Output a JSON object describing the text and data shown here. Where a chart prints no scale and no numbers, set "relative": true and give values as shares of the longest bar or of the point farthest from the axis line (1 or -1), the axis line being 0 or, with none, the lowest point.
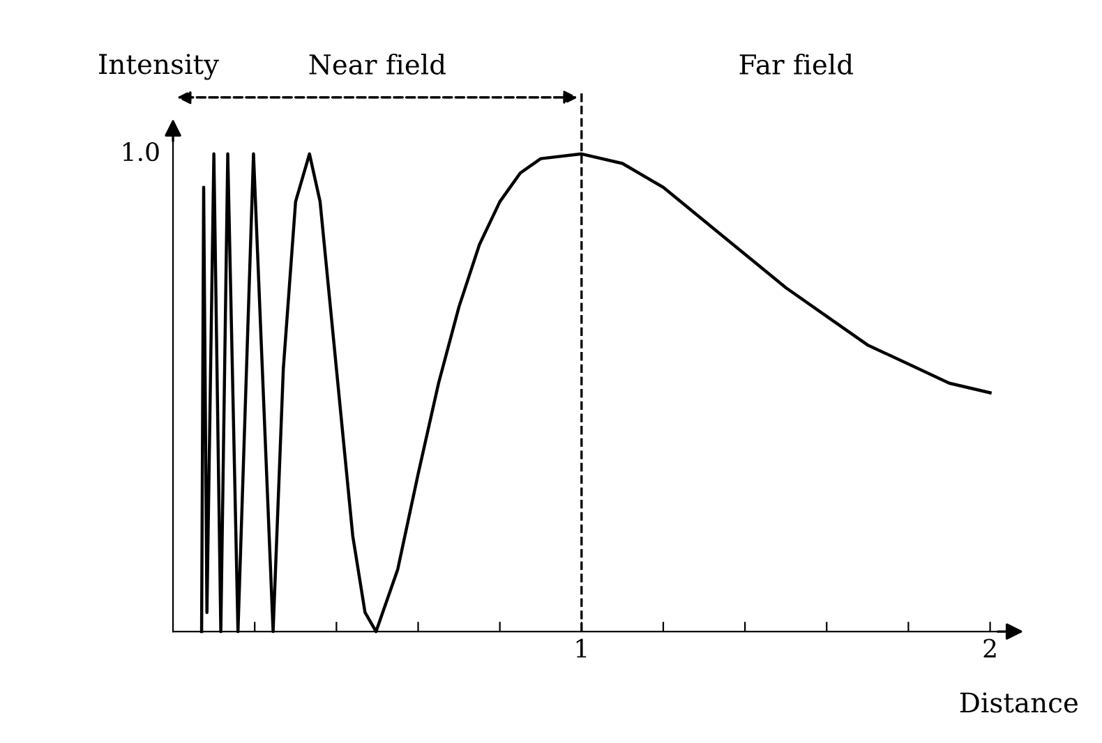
{
  "chart_data": {
    "type": "line",
    "xlabel": "Distance",
    "ylabel": "Intensity",
    "series": [
      {
        "color": "#000000",
        "x": [
          0.07,
          0.075,
          0.083,
          0.1,
          0.117,
          0.134,
          0.159,
          0.197,
          0.245,
          0.27,
          0.3,
          0.334,
          0.36,
          0.4,
          0.44,
          0.47,
          0.497,
          0.55,
          0.6,
          0.65,
          0.7,
          0.75,
          0.8,
          0.85,
          0.9,
          1.0,
          1.1,
          1.2,
          1.3,
          1.4,
          1.5,
          1.6,
          1.7,
          1.8,
          1.9,
          2.0
        ],
        "values": [
          0.0,
          0.93,
          0.04,
          1.0,
          0.0,
          1.0,
          0.0,
          1.0,
          0.0,
          0.55,
          0.9,
          1.0,
          0.9,
          0.55,
          0.2,
          0.04,
          0.0,
          0.13,
          0.33,
          0.52,
          0.68,
          0.81,
          0.9,
          0.96,
          0.99,
          1.0,
          0.98,
          0.93,
          0.86,
          0.79,
          0.72,
          0.66,
          0.6,
          0.56,
          0.52,
          0.5
        ]
      }
    ],
    "xlim": [
      0,
      2.05
    ],
    "relative": true,
    "xticks": [
      {
        "value": 0.2,
        "label": null
      },
      {
        "value": 0.4,
        "label": null
      },
      {
        "value": 0.6,
        "label": null
      },
      {
        "value": 0.8,
        "label": null
      },
      1,
      {
        "value": 1.2,
        "label": null
      },
      {
        "value": 1.4,
        "label": null
      },
      {
        "value": 1.6,
        "label": null
      },
      {
        "value": 1.8,
        "label": null
      },
      2
    ],
    "ref_lines": [
      {
        "axis": "x",
        "value": 1,
        "line_style": "dashed"
      }
    ],
    "annotations": [
      "1.0",
      "Near field",
      "Far field"
    ],
    "grid": false,
    "legend": false,
    "marker": "none",
    "line_style": "solid"
  }
}
